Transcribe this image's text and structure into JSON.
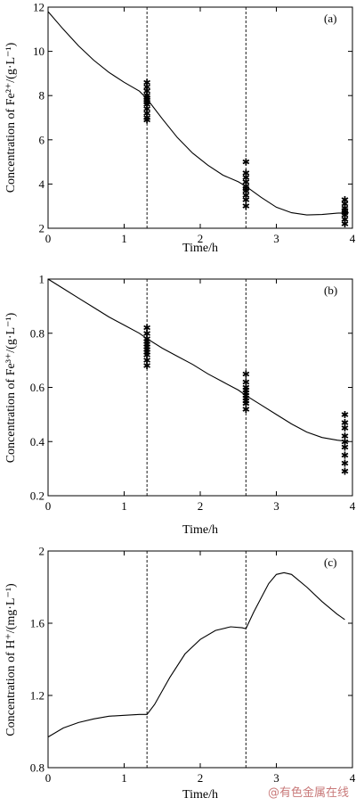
{
  "watermark": "@有色金属在线",
  "chart_data": [
    {
      "type": "line",
      "panel": "(a)",
      "xlabel": "Time/h",
      "ylabel": "Concentration of Fe²⁺/(g·L⁻¹)",
      "xlim": [
        0,
        4
      ],
      "ylim": [
        2,
        12
      ],
      "xticks": [
        0,
        1,
        2,
        3,
        4
      ],
      "yticks": [
        2,
        4,
        6,
        8,
        10,
        12
      ],
      "vlines": [
        1.3,
        2.6
      ],
      "series": [
        {
          "style": "solid-line",
          "x": [
            0,
            0.2,
            0.4,
            0.6,
            0.8,
            1.0,
            1.2,
            1.3,
            1.5,
            1.7,
            1.9,
            2.1,
            2.3,
            2.5,
            2.6,
            2.8,
            3.0,
            3.2,
            3.4,
            3.6,
            3.8,
            3.95
          ],
          "y": [
            11.8,
            11.0,
            10.25,
            9.6,
            9.05,
            8.6,
            8.2,
            7.85,
            6.95,
            6.1,
            5.4,
            4.85,
            4.4,
            4.1,
            3.9,
            3.4,
            2.95,
            2.7,
            2.6,
            2.62,
            2.68,
            2.7
          ]
        },
        {
          "style": "star-markers",
          "x": [
            1.3,
            1.3,
            1.3,
            1.3,
            1.3,
            1.3,
            1.3,
            1.3,
            1.3,
            1.3,
            1.3,
            1.3,
            2.6,
            2.6,
            2.6,
            2.6,
            2.6,
            2.6,
            2.6,
            2.6,
            2.6,
            2.6,
            3.9,
            3.9,
            3.9,
            3.9,
            3.9,
            3.9,
            3.9,
            3.9
          ],
          "y": [
            8.6,
            8.4,
            8.2,
            8.0,
            7.9,
            7.8,
            7.7,
            7.6,
            7.4,
            7.2,
            7.0,
            6.9,
            5.0,
            4.5,
            4.3,
            4.1,
            3.9,
            3.8,
            3.7,
            3.5,
            3.3,
            3.0,
            3.3,
            3.1,
            2.9,
            2.8,
            2.7,
            2.6,
            2.4,
            2.2
          ]
        }
      ]
    },
    {
      "type": "line",
      "panel": "(b)",
      "xlabel": "Time/h",
      "ylabel": "Concentration of Fe³⁺/(g·L⁻¹)",
      "xlim": [
        0,
        4
      ],
      "ylim": [
        0.2,
        1.0
      ],
      "xticks": [
        0,
        1,
        2,
        3,
        4
      ],
      "yticks": [
        0.2,
        0.4,
        0.6,
        0.8,
        1.0
      ],
      "vlines": [
        1.3,
        2.6
      ],
      "series": [
        {
          "style": "solid-line",
          "x": [
            0,
            0.2,
            0.4,
            0.6,
            0.8,
            1.0,
            1.2,
            1.3,
            1.5,
            1.7,
            1.9,
            2.1,
            2.3,
            2.5,
            2.6,
            2.8,
            3.0,
            3.2,
            3.4,
            3.6,
            3.8,
            3.95
          ],
          "y": [
            1.0,
            0.965,
            0.93,
            0.895,
            0.86,
            0.83,
            0.8,
            0.78,
            0.745,
            0.715,
            0.685,
            0.65,
            0.62,
            0.59,
            0.57,
            0.535,
            0.5,
            0.465,
            0.435,
            0.415,
            0.405,
            0.4
          ]
        },
        {
          "style": "star-markers",
          "x": [
            1.3,
            1.3,
            1.3,
            1.3,
            1.3,
            1.3,
            1.3,
            1.3,
            1.3,
            1.3,
            1.3,
            2.6,
            2.6,
            2.6,
            2.6,
            2.6,
            2.6,
            2.6,
            2.6,
            2.6,
            2.6,
            3.9,
            3.9,
            3.9,
            3.9,
            3.9,
            3.9,
            3.9,
            3.9,
            3.9
          ],
          "y": [
            0.82,
            0.8,
            0.78,
            0.77,
            0.76,
            0.75,
            0.74,
            0.73,
            0.72,
            0.7,
            0.68,
            0.65,
            0.62,
            0.6,
            0.59,
            0.58,
            0.57,
            0.56,
            0.55,
            0.54,
            0.52,
            0.5,
            0.47,
            0.45,
            0.42,
            0.4,
            0.38,
            0.35,
            0.32,
            0.29
          ]
        }
      ]
    },
    {
      "type": "line",
      "panel": "(c)",
      "xlabel": "Time/h",
      "ylabel": "Concentration of H⁺/(mg·L⁻¹)",
      "xlim": [
        0,
        4
      ],
      "ylim": [
        0.8,
        2.0
      ],
      "xticks": [
        0,
        1,
        2,
        3,
        4
      ],
      "yticks": [
        0.8,
        1.2,
        1.6,
        2.0
      ],
      "vlines": [
        1.3,
        2.6
      ],
      "series": [
        {
          "style": "solid-line",
          "x": [
            0,
            0.2,
            0.4,
            0.6,
            0.8,
            1.0,
            1.2,
            1.3,
            1.4,
            1.6,
            1.8,
            2.0,
            2.2,
            2.4,
            2.55,
            2.6,
            2.7,
            2.8,
            2.9,
            3.0,
            3.1,
            3.2,
            3.4,
            3.6,
            3.8,
            3.9
          ],
          "y": [
            0.97,
            1.02,
            1.05,
            1.07,
            1.085,
            1.09,
            1.095,
            1.095,
            1.15,
            1.3,
            1.43,
            1.51,
            1.56,
            1.58,
            1.575,
            1.57,
            1.66,
            1.74,
            1.82,
            1.87,
            1.88,
            1.87,
            1.8,
            1.72,
            1.65,
            1.62
          ]
        }
      ]
    }
  ]
}
